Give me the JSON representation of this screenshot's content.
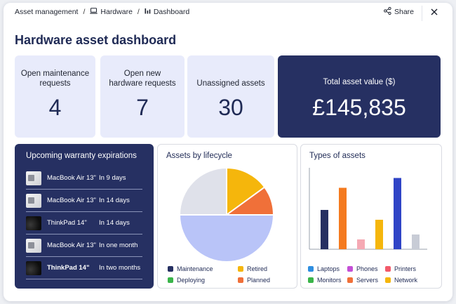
{
  "breadcrumb": {
    "items": [
      {
        "label": "Asset management",
        "icon": "none"
      },
      {
        "label": "Hardware",
        "icon": "laptop-icon"
      },
      {
        "label": "Dashboard",
        "icon": "bar-chart-icon"
      }
    ],
    "separator": "/"
  },
  "header": {
    "share_label": "Share"
  },
  "page_title": "Hardware asset dashboard",
  "kpis": [
    {
      "label": "Open maintenance requests",
      "value": "4"
    },
    {
      "label": "Open new hardware requests",
      "value": "7"
    },
    {
      "label": "Unassigned assets",
      "value": "30"
    },
    {
      "label": "Total asset value ($)",
      "value": "£145,835"
    }
  ],
  "warranty": {
    "title": "Upcoming warranty expirations",
    "items": [
      {
        "name": "MacBook Air 13\"",
        "when": "In 9 days",
        "thumb": "macbook"
      },
      {
        "name": "MacBook Air 13\"",
        "when": "In 14 days",
        "thumb": "macbook"
      },
      {
        "name": "ThinkPad 14\"",
        "when": "In 14 days",
        "thumb": "thinkpad"
      },
      {
        "name": "MacBook Air 13\"",
        "when": "In one month",
        "thumb": "macbook"
      },
      {
        "name": "ThinkPad 14\"",
        "when": "In two months",
        "thumb": "thinkpad"
      }
    ]
  },
  "chart_data": [
    {
      "type": "pie",
      "title": "Assets by lifecycle",
      "categories": [
        "Maintenance",
        "Retired",
        "Deploying",
        "Planned"
      ],
      "slices": [
        {
          "name": "Retired",
          "value": 15,
          "color": "#f5b60c"
        },
        {
          "name": "Planned",
          "value": 10,
          "color": "#f07039"
        },
        {
          "name": "Deploying",
          "value": 50,
          "color": "#b9c4f8"
        },
        {
          "name": "Maintenance",
          "value": 25,
          "color": "#dfe1ea"
        }
      ],
      "legend_items": [
        {
          "name": "Maintenance",
          "color": "#263062"
        },
        {
          "name": "Retired",
          "color": "#f5b60c"
        },
        {
          "name": "Deploying",
          "color": "#3ab54a"
        },
        {
          "name": "Planned",
          "color": "#f07039"
        }
      ],
      "legend_placement": "bottom"
    },
    {
      "type": "bar",
      "title": "Types of assets",
      "categories": [
        "Laptops",
        "Monitors",
        "Servers",
        "Phones",
        "Network",
        "Printers"
      ],
      "values": [
        8,
        12.5,
        2,
        6,
        14.5,
        3
      ],
      "colors": [
        "#263062",
        "#f47a1f",
        "#f5a9b4",
        "#f5b60c",
        "#2f44c6",
        "#c8ccd6"
      ],
      "ylim": [
        0,
        16
      ],
      "grid": false,
      "legend_items": [
        {
          "name": "Laptops",
          "color": "#2e8ee0"
        },
        {
          "name": "Phones",
          "color": "#c44fd6"
        },
        {
          "name": "Printers",
          "color": "#f25a6a"
        },
        {
          "name": "Monitors",
          "color": "#3ab54a"
        },
        {
          "name": "Servers",
          "color": "#f07039"
        },
        {
          "name": "Network",
          "color": "#f5b60c"
        }
      ],
      "legend_placement": "bottom"
    }
  ]
}
